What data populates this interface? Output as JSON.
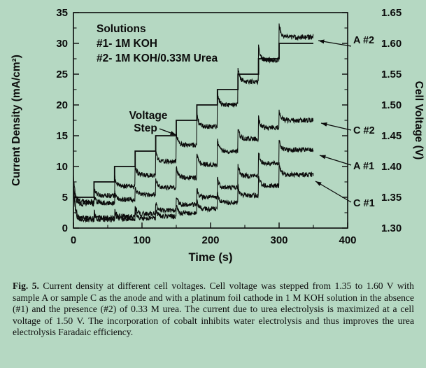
{
  "page": {
    "background": "#b5d8c2"
  },
  "figure": {
    "legend": {
      "title": "Solutions",
      "line1": "#1- 1M KOH",
      "line2": "#2- 1M KOH/0.33M Urea"
    },
    "annotations": {
      "voltage_step_label": "Voltage Step"
    }
  },
  "caption": {
    "label": "Fig. 5.",
    "text": "Current density at different cell voltages. Cell voltage was stepped from 1.35 to 1.60 V with sample A or sample C as the anode and with a platinum foil cathode in 1 M KOH solution in the absence (#1) and the presence (#2) of 0.33 M urea. The current due to urea electrolysis is maximized at a cell voltage of 1.50 V. The incorporation of cobalt inhibits water electrolysis and thus improves the urea electrolysis Faradaic efficiency."
  },
  "chart_data": {
    "type": "line",
    "title": "",
    "xlabel": "Time (s)",
    "ylabel_left": "Current Density (mA/cm²)",
    "ylabel_right": "Cell Voltage (V)",
    "xlim": [
      0,
      400
    ],
    "ylim_left": [
      0,
      35
    ],
    "ylim_right": [
      1.3,
      1.65
    ],
    "x_ticks": [
      0,
      100,
      200,
      300,
      400
    ],
    "y_ticks_left": [
      0,
      5,
      10,
      15,
      20,
      25,
      30,
      35
    ],
    "y_ticks_right": [
      1.3,
      1.35,
      1.4,
      1.45,
      1.5,
      1.55,
      1.6,
      1.65
    ],
    "grid": false,
    "legend_position": "inside-top-left",
    "step_duration_s": 30,
    "end_time_s": 350,
    "voltage_steps": {
      "axis": "right",
      "values": [
        1.35,
        1.375,
        1.4,
        1.425,
        1.45,
        1.475,
        1.5,
        1.525,
        1.55,
        1.575,
        1.6
      ]
    },
    "series": [
      {
        "name": "A #2",
        "axis": "left",
        "initial_peak": 8.3,
        "step_plateaus": [
          4.3,
          5.3,
          6.8,
          8.6,
          10.8,
          13.5,
          16.5,
          20.0,
          23.8,
          27.3,
          31.0
        ]
      },
      {
        "name": "C #2",
        "axis": "left",
        "initial_peak": 7.2,
        "step_plateaus": [
          3.9,
          4.1,
          4.6,
          5.4,
          6.6,
          8.2,
          10.3,
          12.5,
          14.5,
          16.3,
          17.5
        ]
      },
      {
        "name": "A #1",
        "axis": "left",
        "initial_peak": 7.6,
        "step_plateaus": [
          1.6,
          1.7,
          1.9,
          2.3,
          2.9,
          3.8,
          5.0,
          6.6,
          8.5,
          10.5,
          12.7
        ]
      },
      {
        "name": "C #1",
        "axis": "left",
        "initial_peak": 6.4,
        "step_plateaus": [
          1.3,
          1.35,
          1.45,
          1.6,
          1.9,
          2.4,
          3.1,
          4.1,
          5.3,
          6.9,
          8.7
        ]
      }
    ]
  }
}
